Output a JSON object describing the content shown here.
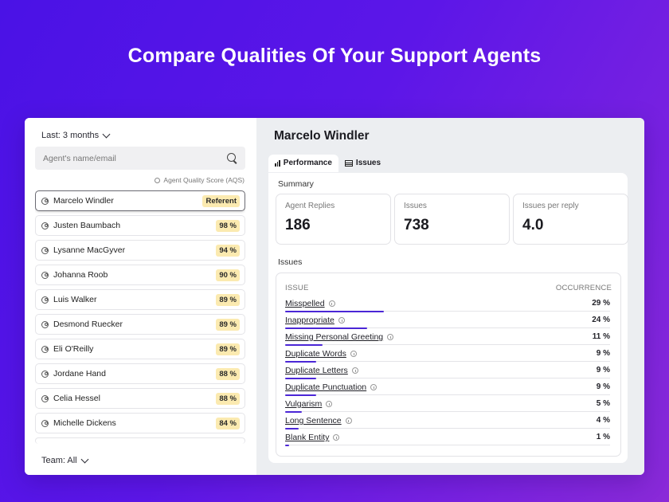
{
  "headline": "Compare Qualities Of Your Support Agents",
  "sidebar": {
    "range_label": "Last: 3 months",
    "search_placeholder": "Agent's name/email",
    "score_caption": "Agent Quality Score (AQS)",
    "team_label": "Team: All",
    "agents": [
      {
        "name": "Marcelo Windler",
        "score": "Referent",
        "selected": true
      },
      {
        "name": "Justen Baumbach",
        "score": "98 %"
      },
      {
        "name": "Lysanne MacGyver",
        "score": "94 %"
      },
      {
        "name": "Johanna Roob",
        "score": "90 %"
      },
      {
        "name": "Luis Walker",
        "score": "89 %"
      },
      {
        "name": "Desmond Ruecker",
        "score": "89 %"
      },
      {
        "name": "Eli O'Reilly",
        "score": "89 %"
      },
      {
        "name": "Jordane Hand",
        "score": "88 %"
      },
      {
        "name": "Celia Hessel",
        "score": "88 %"
      },
      {
        "name": "Michelle Dickens",
        "score": "84 %"
      }
    ]
  },
  "detail": {
    "agent_name": "Marcelo Windler",
    "tabs": [
      {
        "label": "Performance",
        "icon": "bar-chart-icon",
        "active": true
      },
      {
        "label": "Issues",
        "icon": "table-icon",
        "active": false
      }
    ],
    "summary_label": "Summary",
    "stats": [
      {
        "label": "Agent Replies",
        "value": "186"
      },
      {
        "label": "Issues",
        "value": "738"
      },
      {
        "label": "Issues per reply",
        "value": "4.0"
      }
    ],
    "issues_label": "Issues",
    "issues_header": {
      "issue": "ISSUE",
      "occurrence": "OCCURRENCE"
    },
    "issues": [
      {
        "name": "Misspelled",
        "pct": "29 %",
        "fraction": 0.29
      },
      {
        "name": "Inappropriate",
        "pct": "24 %",
        "fraction": 0.24
      },
      {
        "name": "Missing Personal Greeting",
        "pct": "11 %",
        "fraction": 0.11
      },
      {
        "name": "Duplicate Words",
        "pct": "9 %",
        "fraction": 0.09
      },
      {
        "name": "Duplicate Letters",
        "pct": "9 %",
        "fraction": 0.09
      },
      {
        "name": "Duplicate Punctuation",
        "pct": "9 %",
        "fraction": 0.09
      },
      {
        "name": "Vulgarism",
        "pct": "5 %",
        "fraction": 0.05
      },
      {
        "name": "Long Sentence",
        "pct": "4 %",
        "fraction": 0.04
      },
      {
        "name": "Blank Entity",
        "pct": "1 %",
        "fraction": 0.01
      }
    ]
  },
  "colors": {
    "accent": "#4b26d6",
    "score_badge": "#fbeab0"
  }
}
